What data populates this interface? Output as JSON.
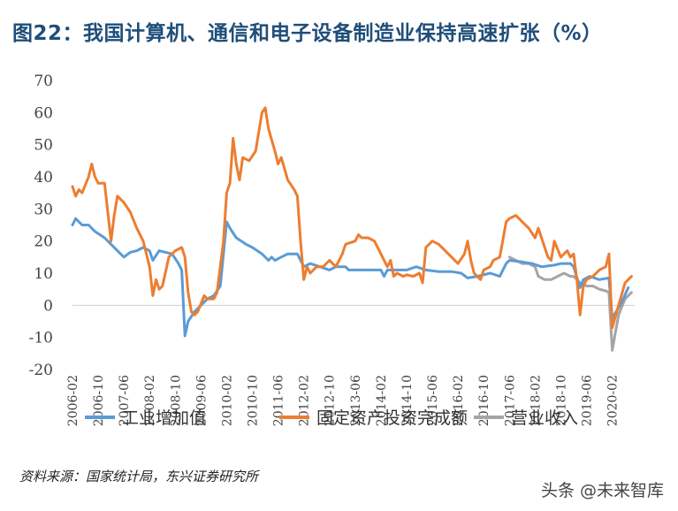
{
  "title": "图22：我国计算机、通信和电子设备制造业保持高速扩张（%）",
  "source": "资料来源：国家统计局，东兴证券研究所",
  "watermark": "头条 @未来智库",
  "chart_data": {
    "type": "line",
    "ylim": [
      -20,
      70
    ],
    "yticks": [
      70,
      60,
      50,
      40,
      30,
      20,
      10,
      0,
      -10,
      -20
    ],
    "xticks": [
      "2006-02",
      "2006-10",
      "2007-06",
      "2008-02",
      "2008-10",
      "2009-06",
      "2010-02",
      "2010-10",
      "2011-06",
      "2012-02",
      "2012-10",
      "2013-06",
      "2014-02",
      "2014-10",
      "2015-06",
      "2016-02",
      "2016-10",
      "2017-06",
      "2018-02",
      "2018-10",
      "2019-06",
      "2020-02"
    ],
    "x_start": "2006-02",
    "x_end": "2020-09",
    "grid": false,
    "legend": "bottom",
    "series": [
      {
        "name": "工业增加值",
        "color": "#5b9bd5",
        "points": [
          [
            "2006-02",
            25
          ],
          [
            "2006-03",
            27
          ],
          [
            "2006-05",
            25
          ],
          [
            "2006-07",
            25
          ],
          [
            "2006-09",
            23
          ],
          [
            "2006-12",
            21
          ],
          [
            "2007-03",
            18
          ],
          [
            "2007-05",
            16
          ],
          [
            "2007-06",
            15
          ],
          [
            "2007-08",
            16.5
          ],
          [
            "2007-10",
            17
          ],
          [
            "2007-12",
            18
          ],
          [
            "2008-02",
            17
          ],
          [
            "2008-03",
            14
          ],
          [
            "2008-05",
            17
          ],
          [
            "2008-07",
            16.5
          ],
          [
            "2008-09",
            16
          ],
          [
            "2008-11",
            13
          ],
          [
            "2008-12",
            11
          ],
          [
            "2009-01",
            -9.5
          ],
          [
            "2009-02",
            -5
          ],
          [
            "2009-04",
            -2
          ],
          [
            "2009-06",
            0
          ],
          [
            "2009-08",
            2
          ],
          [
            "2009-10",
            3
          ],
          [
            "2009-12",
            6
          ],
          [
            "2010-02",
            26
          ],
          [
            "2010-03",
            24
          ],
          [
            "2010-05",
            21
          ],
          [
            "2010-08",
            19
          ],
          [
            "2010-10",
            18
          ],
          [
            "2011-01",
            16
          ],
          [
            "2011-03",
            14
          ],
          [
            "2011-04",
            15
          ],
          [
            "2011-05",
            14
          ],
          [
            "2011-07",
            15
          ],
          [
            "2011-09",
            16
          ],
          [
            "2011-12",
            16
          ],
          [
            "2012-02",
            12
          ],
          [
            "2012-04",
            13
          ],
          [
            "2012-07",
            12
          ],
          [
            "2012-10",
            11
          ],
          [
            "2012-12",
            12
          ],
          [
            "2013-03",
            12
          ],
          [
            "2013-04",
            11
          ],
          [
            "2013-08",
            11
          ],
          [
            "2013-12",
            11
          ],
          [
            "2014-02",
            11
          ],
          [
            "2014-03",
            9
          ],
          [
            "2014-04",
            11
          ],
          [
            "2014-07",
            11
          ],
          [
            "2014-10",
            11
          ],
          [
            "2015-01",
            12
          ],
          [
            "2015-04",
            11
          ],
          [
            "2015-08",
            10.5
          ],
          [
            "2015-12",
            10.5
          ],
          [
            "2016-03",
            10
          ],
          [
            "2016-05",
            8.5
          ],
          [
            "2016-08",
            9
          ],
          [
            "2016-12",
            10
          ],
          [
            "2017-03",
            9
          ],
          [
            "2017-05",
            13
          ],
          [
            "2017-06",
            14
          ],
          [
            "2017-10",
            13.5
          ],
          [
            "2018-01",
            13
          ],
          [
            "2018-04",
            12
          ],
          [
            "2018-08",
            12.5
          ],
          [
            "2018-10",
            13
          ],
          [
            "2019-01",
            13
          ],
          [
            "2019-02",
            12
          ],
          [
            "2019-04",
            5.5
          ],
          [
            "2019-05",
            8
          ],
          [
            "2019-07",
            9
          ],
          [
            "2019-10",
            8
          ],
          [
            "2020-01",
            8.5
          ],
          [
            "2020-02",
            -4
          ],
          [
            "2020-05",
            1
          ],
          [
            "2020-07",
            5.5
          ]
        ]
      },
      {
        "name": "固定资产投资完成额",
        "color": "#ed7d31",
        "points": [
          [
            "2006-02",
            37
          ],
          [
            "2006-03",
            34
          ],
          [
            "2006-04",
            36
          ],
          [
            "2006-05",
            35
          ],
          [
            "2006-07",
            40
          ],
          [
            "2006-08",
            44
          ],
          [
            "2006-09",
            40
          ],
          [
            "2006-10",
            38
          ],
          [
            "2006-12",
            38
          ],
          [
            "2007-02",
            20
          ],
          [
            "2007-03",
            28
          ],
          [
            "2007-04",
            34
          ],
          [
            "2007-06",
            32
          ],
          [
            "2007-08",
            29
          ],
          [
            "2007-10",
            24
          ],
          [
            "2007-12",
            20
          ],
          [
            "2008-01",
            16
          ],
          [
            "2008-02",
            12
          ],
          [
            "2008-03",
            3
          ],
          [
            "2008-04",
            8
          ],
          [
            "2008-05",
            5
          ],
          [
            "2008-06",
            6
          ],
          [
            "2008-08",
            15
          ],
          [
            "2008-10",
            17
          ],
          [
            "2008-12",
            18
          ],
          [
            "2009-01",
            15
          ],
          [
            "2009-02",
            4
          ],
          [
            "2009-03",
            -2
          ],
          [
            "2009-04",
            -3
          ],
          [
            "2009-05",
            -2
          ],
          [
            "2009-07",
            3
          ],
          [
            "2009-08",
            2
          ],
          [
            "2009-10",
            2
          ],
          [
            "2009-11",
            4
          ],
          [
            "2010-01",
            20
          ],
          [
            "2010-02",
            35
          ],
          [
            "2010-03",
            38
          ],
          [
            "2010-04",
            52
          ],
          [
            "2010-05",
            44
          ],
          [
            "2010-06",
            39
          ],
          [
            "2010-07",
            46
          ],
          [
            "2010-09",
            45
          ],
          [
            "2010-11",
            48
          ],
          [
            "2011-01",
            60
          ],
          [
            "2011-02",
            61.5
          ],
          [
            "2011-03",
            55
          ],
          [
            "2011-05",
            48
          ],
          [
            "2011-06",
            44
          ],
          [
            "2011-07",
            46
          ],
          [
            "2011-09",
            39
          ],
          [
            "2011-11",
            36
          ],
          [
            "2011-12",
            34
          ],
          [
            "2012-01",
            20
          ],
          [
            "2012-02",
            8
          ],
          [
            "2012-03",
            12
          ],
          [
            "2012-04",
            10
          ],
          [
            "2012-06",
            12
          ],
          [
            "2012-08",
            12
          ],
          [
            "2012-10",
            14
          ],
          [
            "2012-12",
            12
          ],
          [
            "2013-02",
            16
          ],
          [
            "2013-03",
            19
          ],
          [
            "2013-06",
            20
          ],
          [
            "2013-07",
            22
          ],
          [
            "2013-08",
            21
          ],
          [
            "2013-10",
            21
          ],
          [
            "2013-12",
            20
          ],
          [
            "2014-02",
            16
          ],
          [
            "2014-03",
            14
          ],
          [
            "2014-04",
            12
          ],
          [
            "2014-05",
            14
          ],
          [
            "2014-06",
            9
          ],
          [
            "2014-07",
            10
          ],
          [
            "2014-09",
            9
          ],
          [
            "2014-10",
            9.5
          ],
          [
            "2014-12",
            9
          ],
          [
            "2015-02",
            10
          ],
          [
            "2015-03",
            7
          ],
          [
            "2015-04",
            18
          ],
          [
            "2015-06",
            20
          ],
          [
            "2015-08",
            19
          ],
          [
            "2015-10",
            17
          ],
          [
            "2015-12",
            15
          ],
          [
            "2016-02",
            13
          ],
          [
            "2016-04",
            16
          ],
          [
            "2016-05",
            20
          ],
          [
            "2016-06",
            14
          ],
          [
            "2016-07",
            10
          ],
          [
            "2016-08",
            9
          ],
          [
            "2016-09",
            8
          ],
          [
            "2016-10",
            11
          ],
          [
            "2016-12",
            12
          ],
          [
            "2017-01",
            14
          ],
          [
            "2017-03",
            15
          ],
          [
            "2017-05",
            26
          ],
          [
            "2017-06",
            27
          ],
          [
            "2017-08",
            28
          ],
          [
            "2017-10",
            26
          ],
          [
            "2017-12",
            24
          ],
          [
            "2018-02",
            21
          ],
          [
            "2018-03",
            24
          ],
          [
            "2018-05",
            18
          ],
          [
            "2018-06",
            15
          ],
          [
            "2018-07",
            14
          ],
          [
            "2018-08",
            20
          ],
          [
            "2018-10",
            15
          ],
          [
            "2018-12",
            17
          ],
          [
            "2019-01",
            15
          ],
          [
            "2019-02",
            16
          ],
          [
            "2019-03",
            8
          ],
          [
            "2019-04",
            -3
          ],
          [
            "2019-05",
            6
          ],
          [
            "2019-06",
            8
          ],
          [
            "2019-08",
            9
          ],
          [
            "2019-10",
            11
          ],
          [
            "2019-12",
            12
          ],
          [
            "2020-01",
            16
          ],
          [
            "2020-02",
            -7
          ],
          [
            "2020-04",
            0
          ],
          [
            "2020-06",
            7
          ],
          [
            "2020-08",
            9
          ]
        ]
      },
      {
        "name": "营业收入",
        "color": "#a5a5a5",
        "points": [
          [
            "2017-06",
            15
          ],
          [
            "2017-08",
            14
          ],
          [
            "2017-10",
            13
          ],
          [
            "2017-12",
            13
          ],
          [
            "2018-02",
            12
          ],
          [
            "2018-03",
            9
          ],
          [
            "2018-05",
            8
          ],
          [
            "2018-07",
            8
          ],
          [
            "2018-09",
            9
          ],
          [
            "2018-11",
            10
          ],
          [
            "2019-01",
            9
          ],
          [
            "2019-02",
            9
          ],
          [
            "2019-04",
            7
          ],
          [
            "2019-06",
            6
          ],
          [
            "2019-08",
            6
          ],
          [
            "2019-10",
            5
          ],
          [
            "2019-12",
            4.5
          ],
          [
            "2020-01",
            4
          ],
          [
            "2020-02",
            -14
          ],
          [
            "2020-04",
            -3
          ],
          [
            "2020-06",
            2
          ],
          [
            "2020-08",
            4
          ]
        ]
      }
    ]
  }
}
